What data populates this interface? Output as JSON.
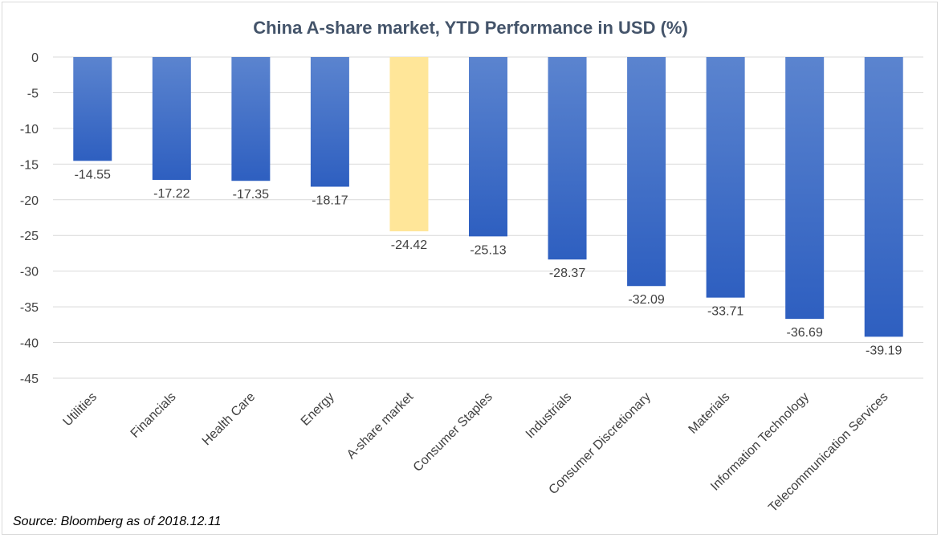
{
  "chart_data": {
    "type": "bar",
    "title": "China A-share market, YTD Performance in USD (%)",
    "xlabel": "",
    "ylabel": "",
    "ylim": [
      -45,
      0
    ],
    "yticks": [
      0,
      -5,
      -10,
      -15,
      -20,
      -25,
      -30,
      -35,
      -40,
      -45
    ],
    "grid": true,
    "legend": "none",
    "categories": [
      "Utilities",
      "Financials",
      "Health Care",
      "Energy",
      "A-share market",
      "Consumer Staples",
      "Industrials",
      "Consumer Discretionary",
      "Materials",
      "Information Technology",
      "Telecommunication Services"
    ],
    "values": [
      -14.55,
      -17.22,
      -17.35,
      -18.17,
      -24.42,
      -25.13,
      -28.37,
      -32.09,
      -33.71,
      -36.69,
      -39.19
    ],
    "data_labels": [
      "-14.55",
      "-17.22",
      "-17.35",
      "-18.17",
      "-24.42",
      "-25.13",
      "-28.37",
      "-32.09",
      "-33.71",
      "-36.69",
      "-39.19"
    ],
    "highlight_category": "A-share market",
    "colors": {
      "bar_top": "#5b84cf",
      "bar_bottom": "#2e5fc0",
      "highlight": "#ffe699",
      "grid": "#d9d9d9",
      "text": "#404040"
    }
  },
  "source_note": "Source: Bloomberg as of 2018.12.11"
}
